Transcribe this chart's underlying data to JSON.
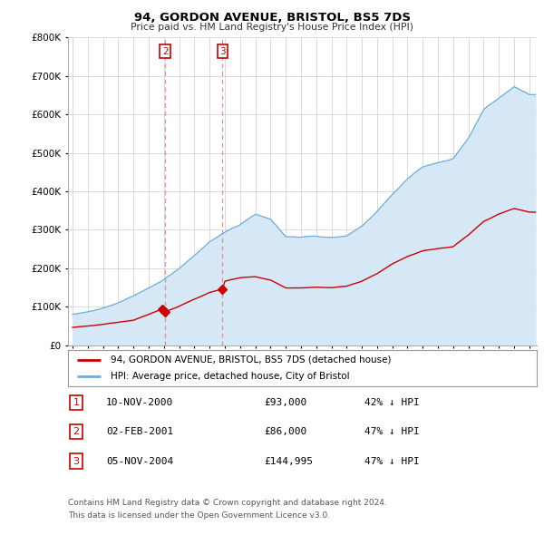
{
  "title": "94, GORDON AVENUE, BRISTOL, BS5 7DS",
  "subtitle": "Price paid vs. HM Land Registry's House Price Index (HPI)",
  "legend_line1": "94, GORDON AVENUE, BRISTOL, BS5 7DS (detached house)",
  "legend_line2": "HPI: Average price, detached house, City of Bristol",
  "footer1": "Contains HM Land Registry data © Crown copyright and database right 2024.",
  "footer2": "This data is licensed under the Open Government Licence v3.0.",
  "sales": [
    {
      "num": 1,
      "date": "10-NOV-2000",
      "price": 93000,
      "pct": "42% ↓ HPI",
      "year": 2000.87,
      "dashed": false
    },
    {
      "num": 2,
      "date": "02-FEB-2001",
      "price": 86000,
      "pct": "47% ↓ HPI",
      "year": 2001.09,
      "dashed": true
    },
    {
      "num": 3,
      "date": "05-NOV-2004",
      "price": 144995,
      "pct": "47% ↓ HPI",
      "year": 2004.85,
      "dashed": true
    }
  ],
  "hpi_color": "#6baed6",
  "hpi_fill_color": "#d6e8f5",
  "price_color": "#cc0000",
  "ylim": [
    0,
    800000
  ],
  "xlim_start": 1994.7,
  "xlim_end": 2025.5,
  "bg_color": "#ffffff",
  "grid_color": "#cccccc",
  "hpi_anchors_x": [
    1995,
    1996,
    1997,
    1998,
    1999,
    2000,
    2001,
    2002,
    2003,
    2004,
    2005,
    2006,
    2007,
    2008,
    2009,
    2010,
    2011,
    2012,
    2013,
    2014,
    2015,
    2016,
    2017,
    2018,
    2019,
    2020,
    2021,
    2022,
    2023,
    2024,
    2025
  ],
  "hpi_anchors_y": [
    80000,
    87000,
    97000,
    111000,
    128000,
    148000,
    172000,
    200000,
    235000,
    270000,
    295000,
    315000,
    342000,
    330000,
    285000,
    285000,
    288000,
    285000,
    290000,
    315000,
    355000,
    400000,
    440000,
    470000,
    480000,
    490000,
    545000,
    620000,
    650000,
    680000,
    660000
  ],
  "red_anchors_x": [
    1995,
    1997,
    1999,
    2000.87,
    2001.09,
    2002,
    2003,
    2004,
    2004.85,
    2005,
    2006,
    2007,
    2008,
    2009,
    2010,
    2011,
    2012,
    2013,
    2014,
    2015,
    2016,
    2017,
    2018,
    2019,
    2020,
    2021,
    2022,
    2023,
    2024,
    2025
  ],
  "red_anchors_y": [
    46000,
    54000,
    65000,
    93000,
    86000,
    100000,
    118000,
    135000,
    144995,
    165000,
    175000,
    177000,
    168000,
    148000,
    148000,
    150000,
    148000,
    152000,
    165000,
    185000,
    210000,
    230000,
    245000,
    250000,
    255000,
    285000,
    320000,
    340000,
    355000,
    345000
  ]
}
